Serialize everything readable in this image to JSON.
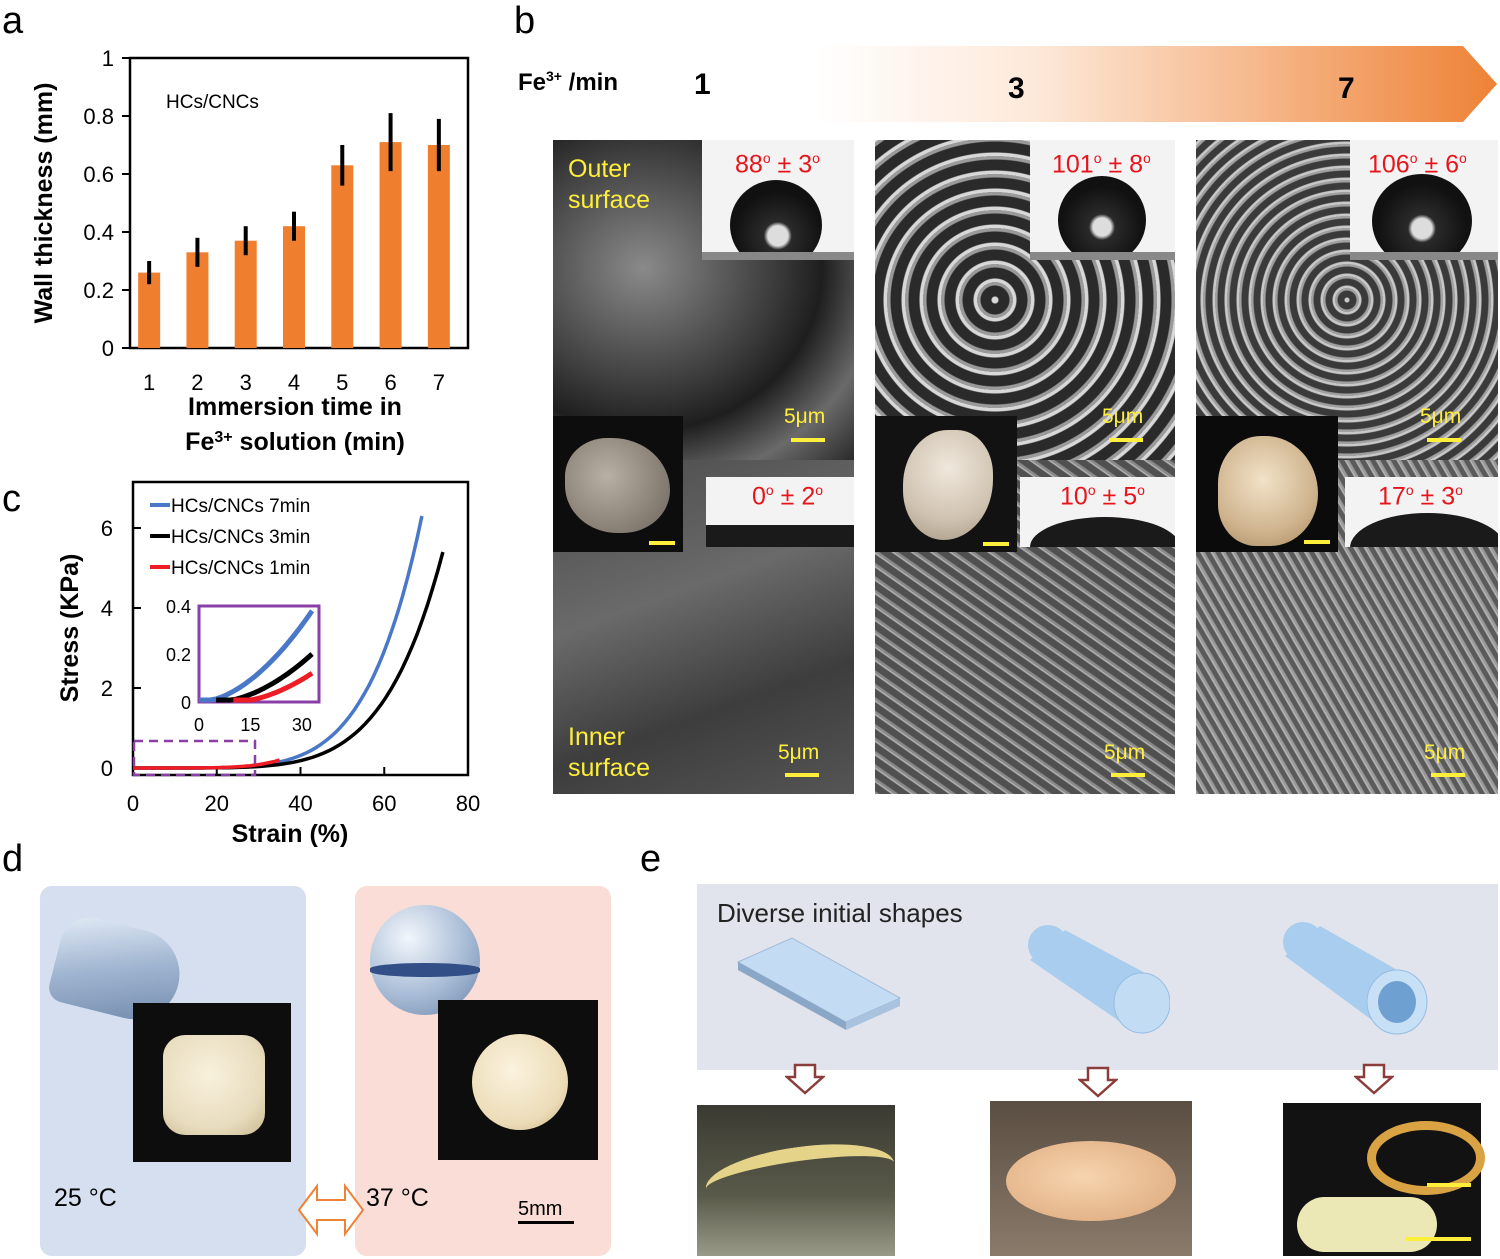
{
  "panels": {
    "a": "a",
    "b": "b",
    "c": "c",
    "d": "d",
    "e": "e"
  },
  "chart_a": {
    "type": "bar",
    "annotation": "HCs/CNCs",
    "ylabel": "Wall thickness (mm)",
    "xlabel_line1": "Immersion time in",
    "xlabel_line2_pre": "Fe",
    "xlabel_line2_sup": "3+",
    "xlabel_line2_post": " solution (min)",
    "ylim": [
      0,
      1
    ],
    "yticks": [
      "0",
      "0.2",
      "0.4",
      "0.6",
      "0.8",
      "1"
    ],
    "categories": [
      "1",
      "2",
      "3",
      "4",
      "5",
      "6",
      "7"
    ],
    "values": [
      0.26,
      0.33,
      0.37,
      0.42,
      0.63,
      0.71,
      0.7
    ],
    "errors": [
      0.04,
      0.05,
      0.05,
      0.05,
      0.07,
      0.1,
      0.09
    ],
    "color": "#ef7f2e"
  },
  "chart_c": {
    "type": "line",
    "ylabel": "Stress (KPa)",
    "xlabel": "Strain (%)",
    "xlim": [
      0,
      80
    ],
    "ylim": [
      0,
      6.5
    ],
    "xticks": [
      "0",
      "20",
      "40",
      "60",
      "80"
    ],
    "yticks": [
      "0",
      "2",
      "4",
      "6"
    ],
    "series": [
      {
        "name": "HCs/CNCs  7min",
        "color": "#4a78c8",
        "end_strain": 69,
        "end_stress": 6.3
      },
      {
        "name": "HCs/CNCs  3min",
        "color": "#000000",
        "end_strain": 74,
        "end_stress": 5.4
      },
      {
        "name": "HCs/CNCs 1min",
        "color": "#ee1c25",
        "end_strain": 35,
        "end_stress": 0.2
      }
    ],
    "inset": {
      "xticks": [
        "0",
        "15",
        "30"
      ],
      "yticks": [
        "0",
        "0.2",
        "0.4"
      ],
      "xlim": [
        0,
        35
      ],
      "ylim": [
        0,
        0.4
      ]
    }
  },
  "panel_b": {
    "header_pre": "Fe",
    "header_sup": "3+",
    "header_post": " /min",
    "times": [
      "1",
      "3",
      "7"
    ],
    "outer_label": [
      "Outer",
      "surface"
    ],
    "inner_label": [
      "Inner",
      "surface"
    ],
    "scale": "5μm",
    "columns": [
      {
        "outer_angle": "88",
        "outer_err": "3",
        "inner_angle": "0",
        "inner_err": "2"
      },
      {
        "outer_angle": "101",
        "outer_err": "8",
        "inner_angle": "10",
        "inner_err": "5"
      },
      {
        "outer_angle": "106",
        "outer_err": "6",
        "inner_angle": "17",
        "inner_err": "3"
      }
    ],
    "deg": "o",
    "pm": " ± "
  },
  "panel_d": {
    "cold": "25 °C",
    "warm": "37 °C",
    "scale": "5mm"
  },
  "panel_e": {
    "title": "Diverse initial shapes"
  }
}
